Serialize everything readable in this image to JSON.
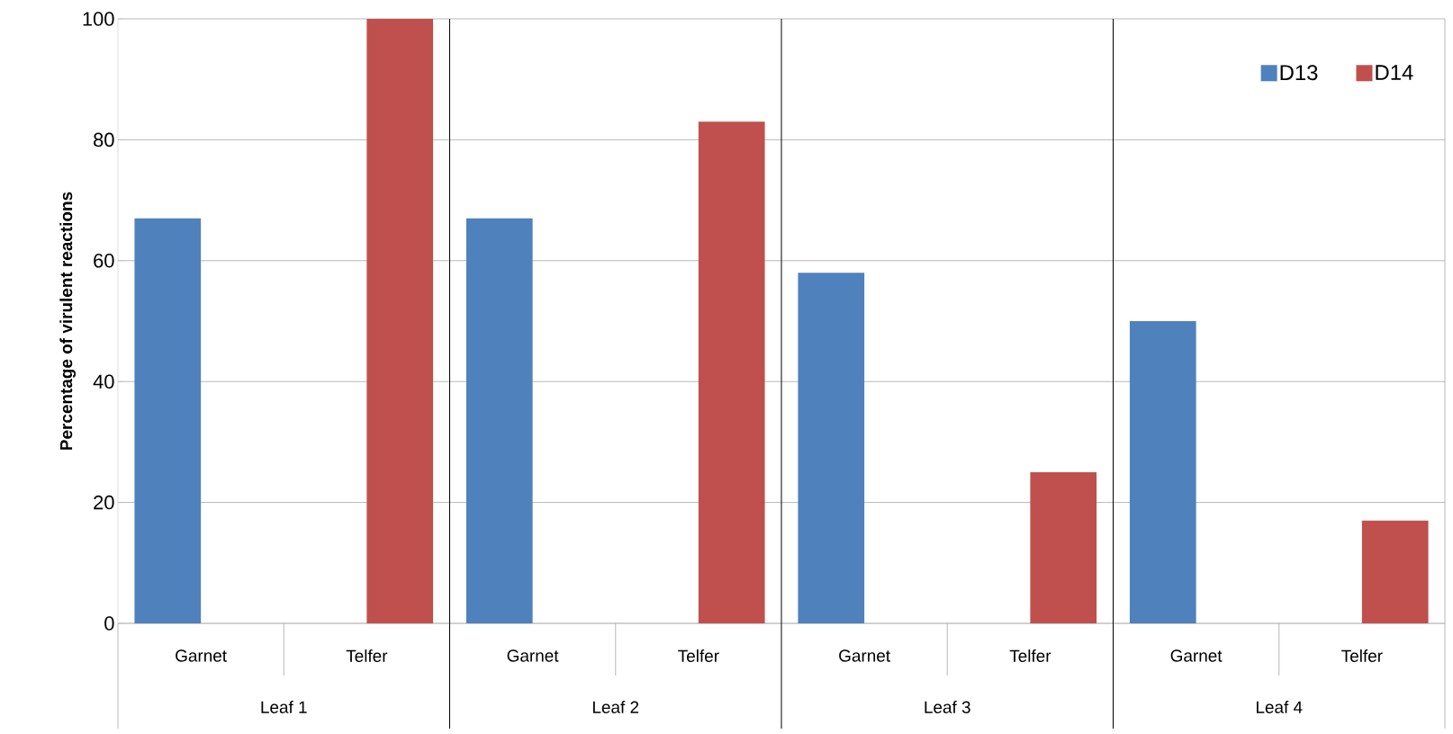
{
  "chart_data": {
    "type": "bar",
    "ylabel": "Percentage of virulent reactions",
    "categories": [
      "Garnet",
      "Telfer",
      "Garnet",
      "Telfer",
      "Garnet",
      "Telfer",
      "Garnet",
      "Telfer"
    ],
    "annotations": [
      "Leaf 1",
      "Leaf 2",
      "Leaf 3",
      "Leaf 4"
    ],
    "series": [
      {
        "name": "D13",
        "color": "#4f81bd",
        "values": [
          67,
          null,
          67,
          null,
          58,
          null,
          50,
          null
        ]
      },
      {
        "name": "D14",
        "color": "#c0504d",
        "values": [
          null,
          100,
          null,
          83,
          null,
          25,
          null,
          17
        ]
      }
    ],
    "ylim": [
      0,
      100
    ],
    "yticks": [
      0,
      20,
      40,
      60,
      80,
      100
    ],
    "grid": "y",
    "legend": "top right"
  }
}
